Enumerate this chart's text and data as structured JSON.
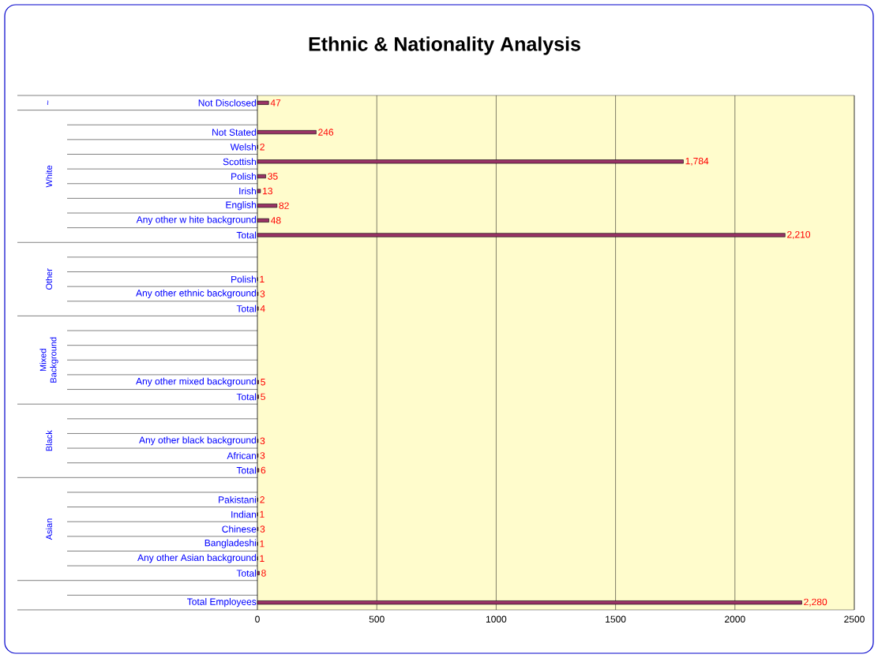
{
  "chart_data": {
    "type": "bar",
    "orientation": "horizontal",
    "title": "Ethnic & Nationality Analysis",
    "categories": [
      "Not Disclosed",
      null,
      "Not Stated",
      "Welsh",
      "Scottish",
      "Polish",
      "Irish",
      "English",
      "Any other w hite background",
      "Total",
      null,
      null,
      "Polish",
      "Any other ethnic background",
      "Total",
      null,
      null,
      null,
      null,
      "Any other mixed background",
      "Total",
      null,
      null,
      "Any other black background",
      "African",
      "Total",
      null,
      "Pakistani",
      "Indian",
      "Chinese",
      "Bangladeshi",
      "Any other Asian background",
      "Total",
      null,
      "Total Employees"
    ],
    "values": [
      47,
      null,
      246,
      2,
      1784,
      35,
      13,
      82,
      48,
      2210,
      null,
      null,
      1,
      3,
      4,
      null,
      null,
      null,
      null,
      5,
      5,
      null,
      null,
      3,
      3,
      6,
      null,
      2,
      1,
      3,
      1,
      1,
      8,
      null,
      2280
    ],
    "value_labels": [
      "47",
      null,
      "246",
      "2",
      "1,784",
      "35",
      "13",
      "82",
      "48",
      "2,210",
      null,
      null,
      "1",
      "3",
      "4",
      null,
      null,
      null,
      null,
      "5",
      "5",
      null,
      null,
      "3",
      "3",
      "6",
      null,
      "2",
      "1",
      "3",
      "1",
      "1",
      "8",
      null,
      "2,280"
    ],
    "color": "#993366",
    "xlim": [
      0,
      2500
    ],
    "xticks": [
      0,
      500,
      1000,
      1500,
      2000,
      2500
    ],
    "grid": "x",
    "annotations": [
      "~",
      "White",
      "Other",
      "Mixed Background",
      "Black",
      "Asian"
    ]
  }
}
